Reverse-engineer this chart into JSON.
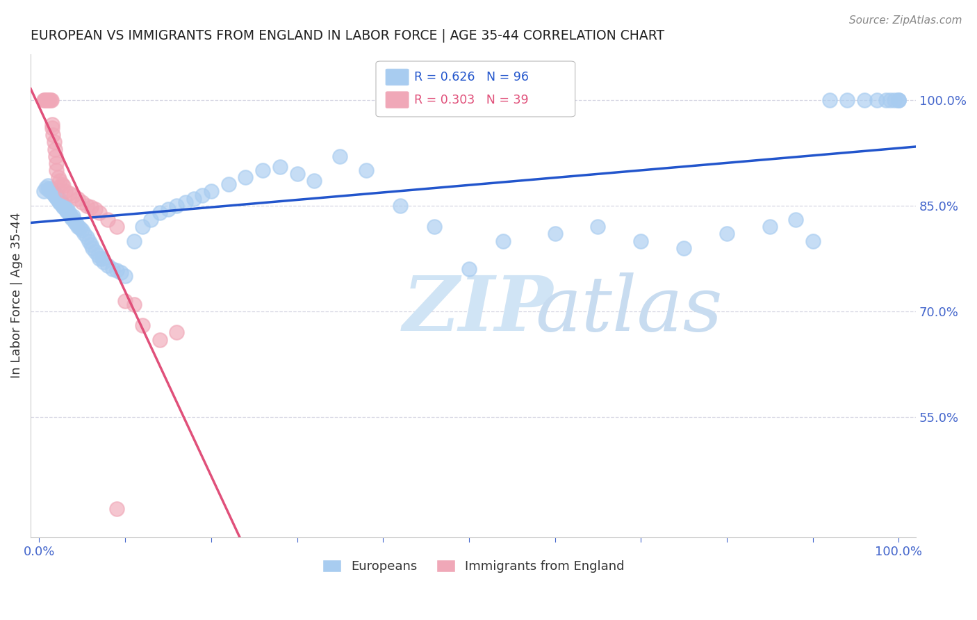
{
  "title": "EUROPEAN VS IMMIGRANTS FROM ENGLAND IN LABOR FORCE | AGE 35-44 CORRELATION CHART",
  "source": "Source: ZipAtlas.com",
  "ylabel": "In Labor Force | Age 35-44",
  "xlim": [
    -0.01,
    1.02
  ],
  "ylim": [
    0.38,
    1.065
  ],
  "yticks": [
    0.55,
    0.7,
    0.85,
    1.0
  ],
  "ytick_labels": [
    "55.0%",
    "70.0%",
    "85.0%",
    "100.0%"
  ],
  "blue_R": 0.626,
  "blue_N": 96,
  "pink_R": 0.303,
  "pink_N": 39,
  "blue_color": "#A8CCF0",
  "pink_color": "#F0A8B8",
  "blue_line_color": "#2255CC",
  "pink_line_color": "#E0507A",
  "watermark_color": "#D8E8F8",
  "grid_color": "#CCCCDD",
  "title_color": "#222222",
  "axis_color": "#4466CC",
  "legend_blue_label": "Europeans",
  "legend_pink_label": "Immigrants from England",
  "blue_x": [
    0.005,
    0.008,
    0.01,
    0.01,
    0.012,
    0.013,
    0.015,
    0.015,
    0.016,
    0.017,
    0.018,
    0.019,
    0.02,
    0.02,
    0.021,
    0.022,
    0.022,
    0.023,
    0.024,
    0.025,
    0.026,
    0.027,
    0.028,
    0.029,
    0.03,
    0.031,
    0.032,
    0.033,
    0.034,
    0.035,
    0.036,
    0.037,
    0.038,
    0.039,
    0.04,
    0.041,
    0.042,
    0.043,
    0.045,
    0.047,
    0.05,
    0.052,
    0.055,
    0.058,
    0.06,
    0.062,
    0.065,
    0.068,
    0.07,
    0.073,
    0.075,
    0.08,
    0.085,
    0.09,
    0.095,
    0.1,
    0.11,
    0.12,
    0.13,
    0.14,
    0.15,
    0.16,
    0.17,
    0.18,
    0.19,
    0.2,
    0.22,
    0.24,
    0.26,
    0.28,
    0.3,
    0.32,
    0.35,
    0.38,
    0.42,
    0.46,
    0.5,
    0.54,
    0.6,
    0.65,
    0.7,
    0.75,
    0.8,
    0.85,
    0.88,
    0.9,
    0.92,
    0.94,
    0.96,
    0.975,
    0.985,
    0.99,
    0.995,
    1.0,
    1.0,
    1.0
  ],
  "blue_y": [
    0.87,
    0.875,
    0.873,
    0.878,
    0.871,
    0.874,
    0.869,
    0.872,
    0.868,
    0.866,
    0.864,
    0.867,
    0.862,
    0.865,
    0.86,
    0.858,
    0.863,
    0.856,
    0.854,
    0.857,
    0.852,
    0.85,
    0.848,
    0.851,
    0.846,
    0.844,
    0.842,
    0.845,
    0.84,
    0.838,
    0.836,
    0.834,
    0.832,
    0.835,
    0.83,
    0.828,
    0.826,
    0.824,
    0.82,
    0.818,
    0.815,
    0.81,
    0.805,
    0.8,
    0.795,
    0.79,
    0.785,
    0.78,
    0.775,
    0.775,
    0.77,
    0.765,
    0.76,
    0.758,
    0.755,
    0.75,
    0.8,
    0.82,
    0.83,
    0.84,
    0.845,
    0.85,
    0.855,
    0.86,
    0.865,
    0.87,
    0.88,
    0.89,
    0.9,
    0.905,
    0.895,
    0.885,
    0.92,
    0.9,
    0.85,
    0.82,
    0.76,
    0.8,
    0.81,
    0.82,
    0.8,
    0.79,
    0.81,
    0.82,
    0.83,
    0.8,
    1.0,
    1.0,
    1.0,
    1.0,
    1.0,
    1.0,
    1.0,
    1.0,
    1.0,
    1.0
  ],
  "pink_x": [
    0.005,
    0.006,
    0.007,
    0.008,
    0.009,
    0.01,
    0.011,
    0.012,
    0.013,
    0.014,
    0.015,
    0.015,
    0.016,
    0.017,
    0.018,
    0.019,
    0.02,
    0.02,
    0.022,
    0.024,
    0.026,
    0.028,
    0.03,
    0.035,
    0.04,
    0.045,
    0.05,
    0.055,
    0.06,
    0.065,
    0.07,
    0.08,
    0.09,
    0.1,
    0.11,
    0.12,
    0.14,
    0.16,
    0.09
  ],
  "pink_y": [
    1.0,
    1.0,
    1.0,
    1.0,
    1.0,
    1.0,
    1.0,
    1.0,
    1.0,
    1.0,
    0.96,
    0.965,
    0.95,
    0.94,
    0.93,
    0.92,
    0.91,
    0.9,
    0.89,
    0.885,
    0.88,
    0.878,
    0.87,
    0.868,
    0.865,
    0.86,
    0.855,
    0.85,
    0.848,
    0.845,
    0.84,
    0.83,
    0.82,
    0.715,
    0.71,
    0.68,
    0.66,
    0.67,
    0.42
  ]
}
